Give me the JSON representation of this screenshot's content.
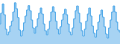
{
  "chart_data": {
    "type": "area",
    "values": [
      38.5,
      41.2,
      43.5,
      40.8,
      37.2,
      35.8,
      36.5,
      38.0,
      39.2,
      41.5,
      43.8,
      42.3,
      40.1,
      37.0,
      35.5,
      36.8,
      38.8,
      40.5,
      42.0,
      43.1,
      41.8,
      39.5,
      37.5,
      36.2,
      37.8,
      39.8,
      41.2,
      42.5,
      41.0,
      38.5,
      36.8,
      35.8,
      37.2,
      39.2,
      41.5,
      42.8,
      41.5,
      39.2,
      37.2,
      36.0,
      37.8,
      39.5,
      41.0,
      42.2,
      40.8,
      38.5,
      36.5,
      35.8,
      37.5,
      39.8,
      41.8,
      43.0,
      41.2,
      38.8,
      36.8,
      35.5,
      37.2,
      39.2,
      41.0,
      42.5,
      40.5,
      38.0,
      36.2,
      35.2,
      37.0,
      39.0,
      40.8,
      42.0,
      40.2,
      37.8,
      36.0,
      35.0,
      37.5,
      39.5,
      41.5,
      43.0,
      41.5,
      39.0,
      37.0,
      36.5
    ],
    "color": "#4fa8e8",
    "ylim": [
      33.5,
      44.5
    ],
    "grid": false,
    "tick_labels": false
  }
}
